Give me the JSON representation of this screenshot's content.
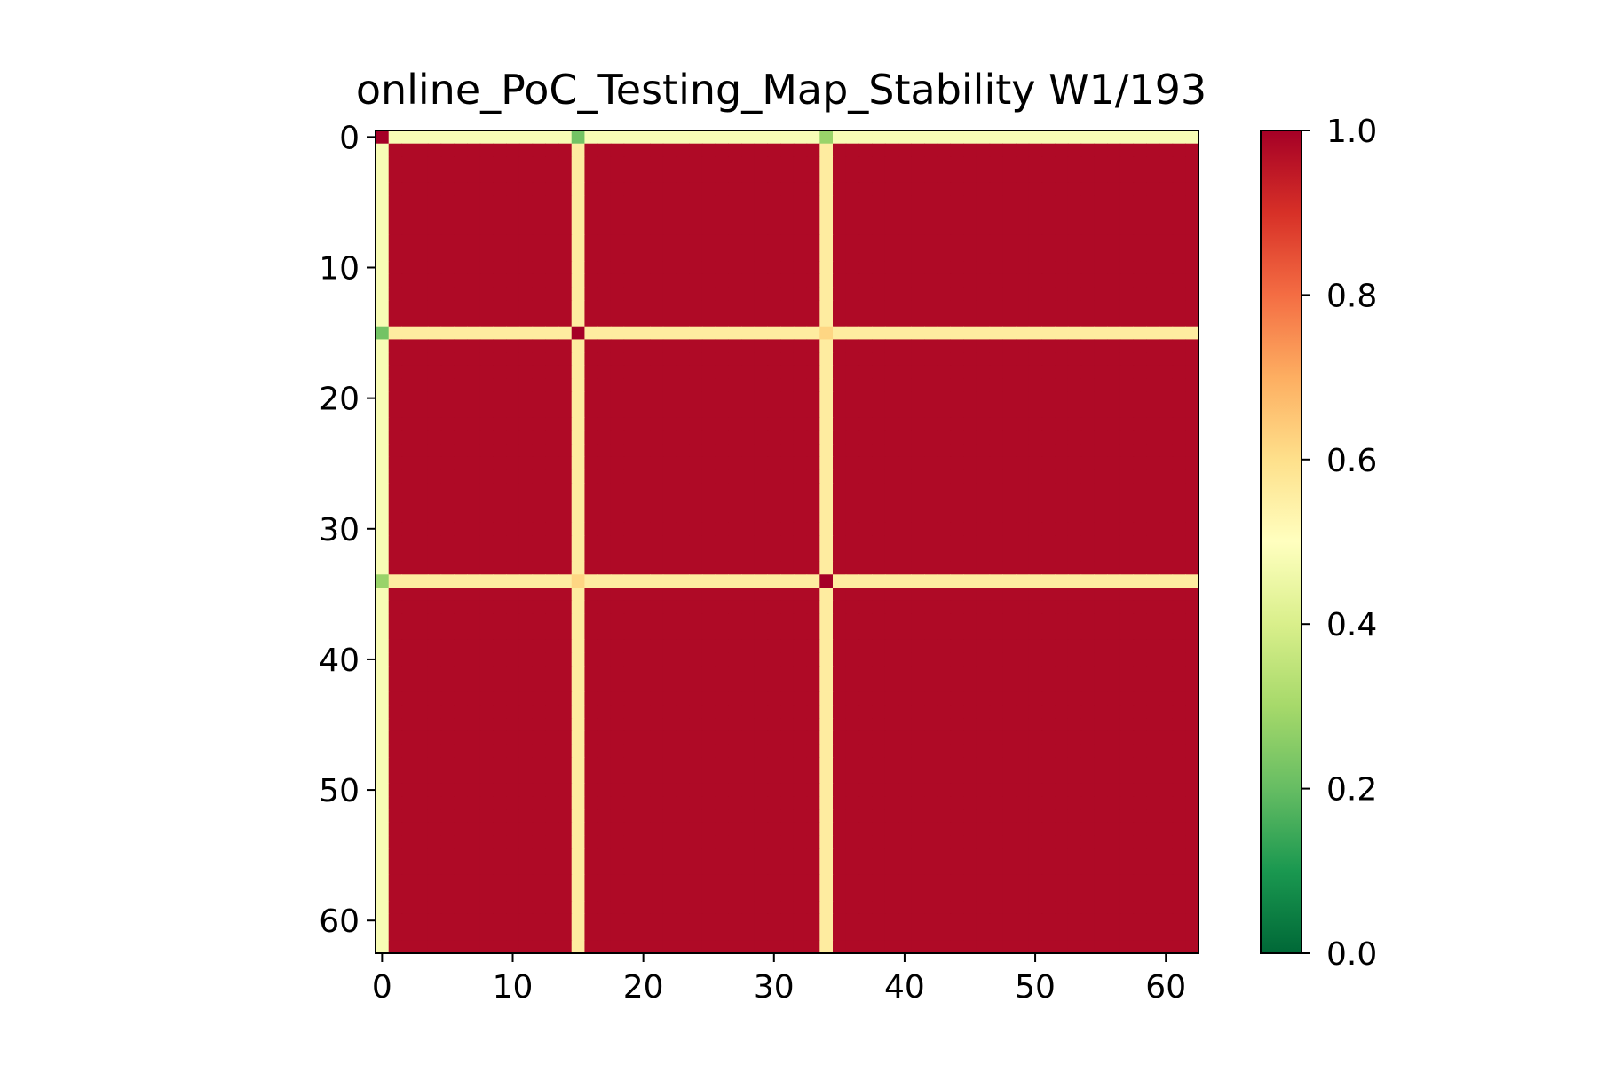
{
  "chart_data": {
    "type": "heatmap",
    "title": "online_PoC_Testing_Map_Stability W1/193",
    "xlabel": "",
    "ylabel": "",
    "n_rows": 63,
    "n_cols": 63,
    "xlim": [
      -0.5,
      62.5
    ],
    "ylim": [
      62.5,
      -0.5
    ],
    "x_ticks": [
      0,
      10,
      20,
      30,
      40,
      50,
      60
    ],
    "x_tick_labels": [
      "0",
      "10",
      "20",
      "30",
      "40",
      "50",
      "60"
    ],
    "y_ticks": [
      0,
      10,
      20,
      30,
      40,
      50,
      60
    ],
    "y_tick_labels": [
      "0",
      "10",
      "20",
      "30",
      "40",
      "50",
      "60"
    ],
    "colormap": "RdYlGn_r",
    "colormap_stops": [
      {
        "value": 0.0,
        "color": "#006837"
      },
      {
        "value": 0.1,
        "color": "#1a9850"
      },
      {
        "value": 0.2,
        "color": "#66bd63"
      },
      {
        "value": 0.3,
        "color": "#a6d96a"
      },
      {
        "value": 0.4,
        "color": "#d9ef8b"
      },
      {
        "value": 0.5,
        "color": "#ffffbf"
      },
      {
        "value": 0.6,
        "color": "#fee08b"
      },
      {
        "value": 0.7,
        "color": "#fdae61"
      },
      {
        "value": 0.8,
        "color": "#f46d43"
      },
      {
        "value": 0.9,
        "color": "#d73027"
      },
      {
        "value": 1.0,
        "color": "#a50026"
      }
    ],
    "colorbar": {
      "vmin": 0.0,
      "vmax": 1.0,
      "ticks": [
        0.0,
        0.2,
        0.4,
        0.6,
        0.8,
        1.0
      ],
      "tick_labels": [
        "0.0",
        "0.2",
        "0.4",
        "0.6",
        "0.8",
        "1.0"
      ],
      "placement": "right"
    },
    "default_value": 0.98,
    "special_indices": [
      0,
      15,
      34
    ],
    "special_index_values": {
      "0": 0.48,
      "15": 0.56,
      "34": 0.56
    },
    "special_pair_values": [
      {
        "row": 0,
        "col": 0,
        "value": 1.0
      },
      {
        "row": 15,
        "col": 15,
        "value": 1.0
      },
      {
        "row": 34,
        "col": 34,
        "value": 1.0
      },
      {
        "row": 0,
        "col": 15,
        "value": 0.22
      },
      {
        "row": 15,
        "col": 0,
        "value": 0.22
      },
      {
        "row": 0,
        "col": 34,
        "value": 0.28
      },
      {
        "row": 34,
        "col": 0,
        "value": 0.28
      },
      {
        "row": 15,
        "col": 34,
        "value": 0.62
      },
      {
        "row": 34,
        "col": 15,
        "value": 0.62
      }
    ],
    "grid": false
  }
}
